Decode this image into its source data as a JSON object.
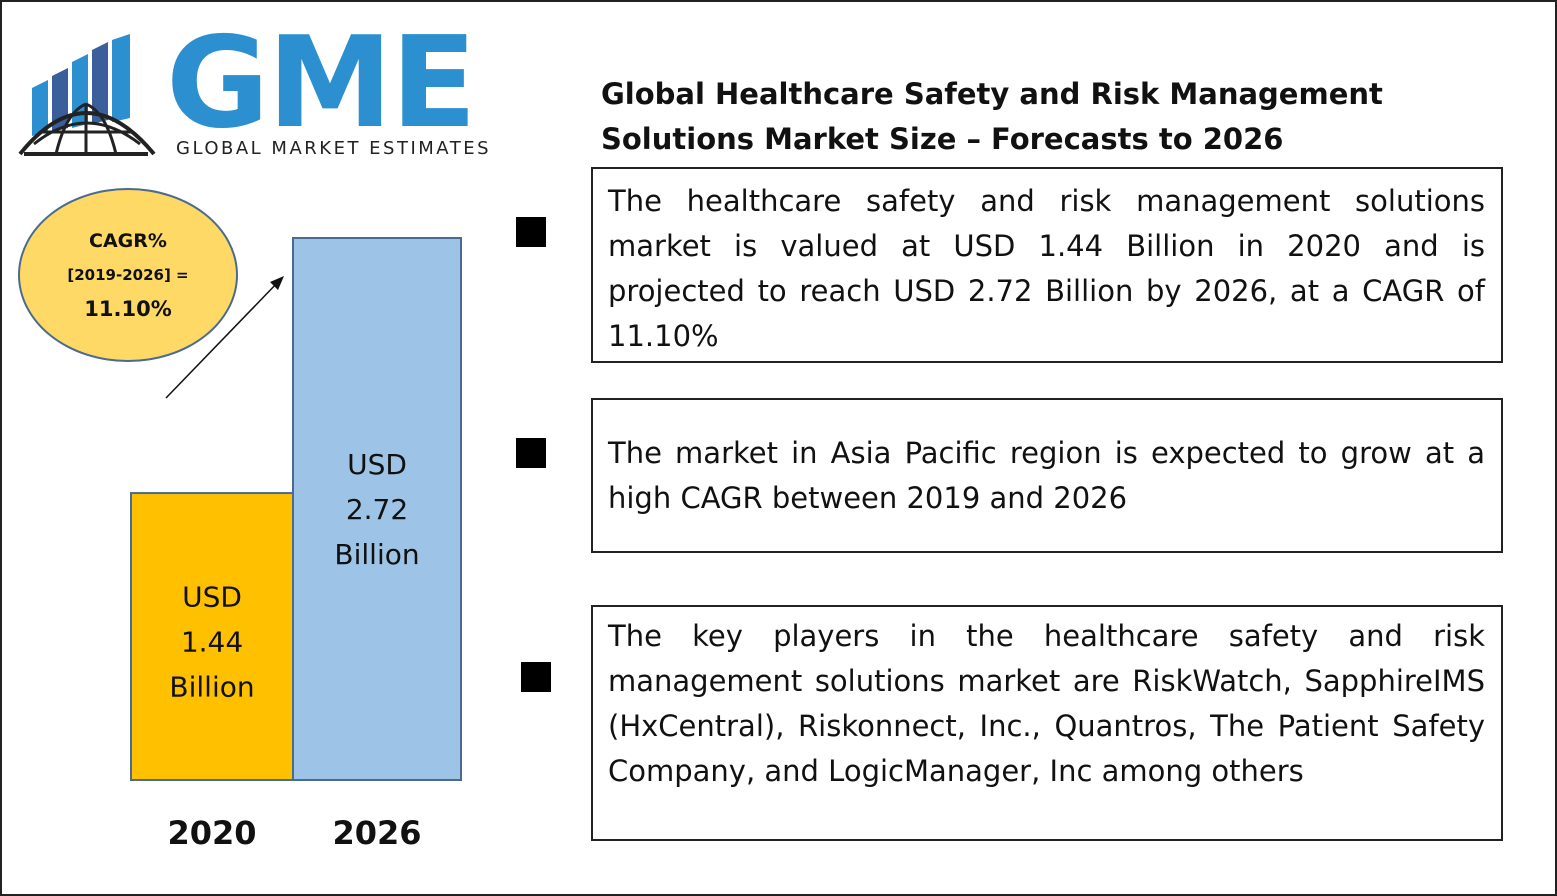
{
  "logo": {
    "letters": "GME",
    "subtitle": "GLOBAL MARKET ESTIMATES"
  },
  "title": "Global Healthcare Safety and Risk Management Solutions Market Size – Forecasts to 2026",
  "cagr": {
    "label": "CAGR%",
    "period": "[2019-2026] =",
    "value": "11.10%"
  },
  "chart_data": {
    "type": "bar",
    "categories": [
      "2020",
      "2026"
    ],
    "values": [
      1.44,
      2.72
    ],
    "data_labels": [
      [
        "USD",
        "1.44",
        "Billion"
      ],
      [
        "USD",
        "2.72",
        "Billion"
      ]
    ],
    "colors": [
      "#ffc000",
      "#9dc3e6"
    ],
    "ylim": [
      0,
      2.72
    ],
    "grid": false
  },
  "info_boxes": [
    {
      "text": "The healthcare safety and risk management solutions market is valued at USD 1.44 Billion in 2020 and is projected to reach USD 2.72 Billion by 2026, at a CAGR of 11.10%"
    },
    {
      "text": "The market in Asia Pacific region is expected to grow at a high CAGR between 2019 and 2026"
    },
    {
      "text": "The key players in the healthcare safety and risk management solutions market are RiskWatch, SapphireIMS (HxCentral), Riskonnect, Inc., Quantros, The Patient Safety Company, and LogicManager, Inc among others"
    }
  ],
  "colors": {
    "logo_blue": "#2b8fd0",
    "ellipse_fill": "#ffd966",
    "ellipse_border": "#4a6a8f"
  }
}
